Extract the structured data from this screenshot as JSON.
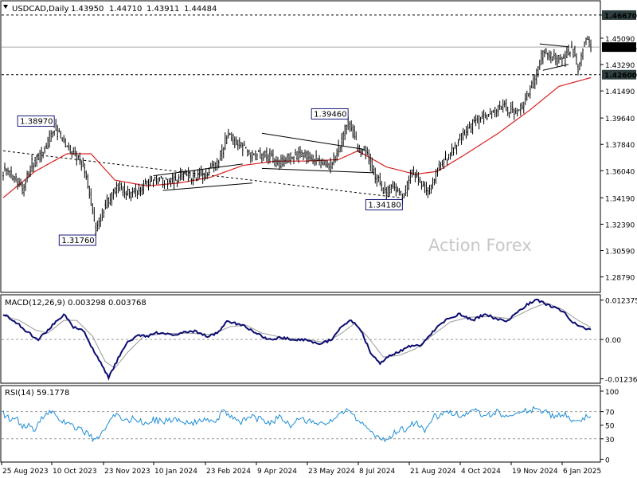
{
  "chart_data": [
    {
      "type": "candlestick",
      "panel": "price",
      "symbol": "USDCAD,Daily",
      "ohlc": [
        "1.43950",
        "1.44710",
        "1.43911",
        "1.44484"
      ],
      "ylim": [
        1.2779,
        1.4759
      ],
      "y_ticks": [
        "1.46670",
        "1.45090",
        "1.43290",
        "1.41490",
        "1.39640",
        "1.37840",
        "1.36040",
        "1.34190",
        "1.32390",
        "1.30590",
        "1.28790"
      ],
      "current_price": "1.44484",
      "levels": [
        {
          "value": 1.4667,
          "label": "1.46670",
          "style": "dashed"
        },
        {
          "value": 1.426,
          "label": "1.42600",
          "style": "dashed"
        }
      ],
      "annotations": [
        {
          "label": "1.38970",
          "value": 1.3897,
          "date_index": 32
        },
        {
          "label": "1.31760",
          "value": 1.3176,
          "date_index": 58
        },
        {
          "label": "1.39460",
          "value": 1.3946,
          "date_index": 216
        },
        {
          "label": "1.34180",
          "value": 1.3418,
          "date_index": 250
        }
      ],
      "x_ticks": [
        "25 Aug 2023",
        "10 Oct 2023",
        "23 Nov 2023",
        "10 Jan 2024",
        "23 Feb 2024",
        "9 Apr 2024",
        "23 May 2024",
        "8 Jul 2024",
        "21 Aug 2024",
        "4 Oct 2024",
        "19 Nov 2024",
        "6 Jan 2025"
      ],
      "close_keypoints": [
        [
          0,
          1.36
        ],
        [
          6,
          1.357
        ],
        [
          12,
          1.348
        ],
        [
          18,
          1.365
        ],
        [
          24,
          1.37
        ],
        [
          32,
          1.3897
        ],
        [
          38,
          1.38
        ],
        [
          44,
          1.372
        ],
        [
          50,
          1.365
        ],
        [
          54,
          1.345
        ],
        [
          58,
          1.3176
        ],
        [
          63,
          1.335
        ],
        [
          68,
          1.345
        ],
        [
          72,
          1.35
        ],
        [
          80,
          1.344
        ],
        [
          88,
          1.35
        ],
        [
          96,
          1.355
        ],
        [
          104,
          1.352
        ],
        [
          112,
          1.358
        ],
        [
          120,
          1.356
        ],
        [
          128,
          1.36
        ],
        [
          134,
          1.365
        ],
        [
          140,
          1.385
        ],
        [
          148,
          1.378
        ],
        [
          156,
          1.37
        ],
        [
          164,
          1.372
        ],
        [
          172,
          1.365
        ],
        [
          180,
          1.37
        ],
        [
          188,
          1.372
        ],
        [
          196,
          1.368
        ],
        [
          204,
          1.363
        ],
        [
          210,
          1.375
        ],
        [
          216,
          1.3946
        ],
        [
          222,
          1.376
        ],
        [
          228,
          1.37
        ],
        [
          234,
          1.355
        ],
        [
          240,
          1.345
        ],
        [
          245,
          1.35
        ],
        [
          250,
          1.3418
        ],
        [
          256,
          1.36
        ],
        [
          262,
          1.352
        ],
        [
          266,
          1.345
        ],
        [
          272,
          1.362
        ],
        [
          280,
          1.372
        ],
        [
          288,
          1.385
        ],
        [
          296,
          1.395
        ],
        [
          304,
          1.397
        ],
        [
          312,
          1.405
        ],
        [
          320,
          1.4
        ],
        [
          328,
          1.41
        ],
        [
          334,
          1.426
        ],
        [
          338,
          1.442
        ],
        [
          344,
          1.438
        ],
        [
          350,
          1.435
        ],
        [
          356,
          1.445
        ],
        [
          360,
          1.43
        ],
        [
          364,
          1.45
        ],
        [
          368,
          1.4448
        ]
      ],
      "ma_keypoints": [
        [
          0,
          1.342
        ],
        [
          20,
          1.36
        ],
        [
          40,
          1.372
        ],
        [
          55,
          1.372
        ],
        [
          70,
          1.354
        ],
        [
          90,
          1.35
        ],
        [
          110,
          1.352
        ],
        [
          130,
          1.356
        ],
        [
          150,
          1.364
        ],
        [
          170,
          1.367
        ],
        [
          190,
          1.367
        ],
        [
          210,
          1.368
        ],
        [
          222,
          1.374
        ],
        [
          240,
          1.363
        ],
        [
          258,
          1.358
        ],
        [
          272,
          1.36
        ],
        [
          290,
          1.372
        ],
        [
          310,
          1.386
        ],
        [
          330,
          1.402
        ],
        [
          348,
          1.418
        ],
        [
          368,
          1.424
        ]
      ],
      "pattern_lines": [
        {
          "from": [
            0,
            1.374
          ],
          "to": [
            250,
            1.3418
          ]
        },
        {
          "from": [
            94,
            1.357
          ],
          "to": [
            150,
            1.365
          ]
        },
        {
          "from": [
            100,
            1.347
          ],
          "to": [
            156,
            1.352
          ]
        },
        {
          "from": [
            162,
            1.386
          ],
          "to": [
            226,
            1.375
          ]
        },
        {
          "from": [
            162,
            1.362
          ],
          "to": [
            232,
            1.359
          ]
        },
        {
          "from": [
            336,
            1.447
          ],
          "to": [
            354,
            1.445
          ]
        },
        {
          "from": [
            338,
            1.429
          ],
          "to": [
            354,
            1.433
          ]
        }
      ],
      "watermark": "Action Forex"
    },
    {
      "type": "line",
      "panel": "macd",
      "title": "MACD(12,26,9) 0.003298 0.003768",
      "ylim": [
        -0.0135,
        0.0138
      ],
      "y_ticks": [
        "0.012375",
        "0.00",
        "-0.012367"
      ],
      "macd_keypoints": [
        [
          0,
          0.008
        ],
        [
          8,
          0.0055
        ],
        [
          16,
          0.002
        ],
        [
          22,
          0.0
        ],
        [
          30,
          0.004
        ],
        [
          38,
          0.008
        ],
        [
          44,
          0.004
        ],
        [
          50,
          0.003
        ],
        [
          56,
          -0.003
        ],
        [
          62,
          -0.008
        ],
        [
          66,
          -0.012
        ],
        [
          72,
          -0.006
        ],
        [
          78,
          -0.001
        ],
        [
          84,
          0.0015
        ],
        [
          90,
          0.001
        ],
        [
          96,
          0.002
        ],
        [
          104,
          0.0015
        ],
        [
          112,
          0.002
        ],
        [
          120,
          0.0025
        ],
        [
          128,
          0.001
        ],
        [
          134,
          0.002
        ],
        [
          140,
          0.0055
        ],
        [
          146,
          0.005
        ],
        [
          152,
          0.004
        ],
        [
          158,
          0.002
        ],
        [
          166,
          0.0
        ],
        [
          174,
          0.0005
        ],
        [
          182,
          0.0
        ],
        [
          190,
          0.0
        ],
        [
          198,
          -0.0015
        ],
        [
          206,
          0.0
        ],
        [
          212,
          0.004
        ],
        [
          218,
          0.006
        ],
        [
          224,
          0.003
        ],
        [
          230,
          -0.004
        ],
        [
          236,
          -0.0075
        ],
        [
          242,
          -0.005
        ],
        [
          248,
          -0.004
        ],
        [
          254,
          -0.002
        ],
        [
          262,
          -0.002
        ],
        [
          270,
          0.003
        ],
        [
          278,
          0.0065
        ],
        [
          286,
          0.008
        ],
        [
          294,
          0.006
        ],
        [
          302,
          0.008
        ],
        [
          308,
          0.0065
        ],
        [
          316,
          0.006
        ],
        [
          322,
          0.0085
        ],
        [
          328,
          0.011
        ],
        [
          334,
          0.0125
        ],
        [
          340,
          0.011
        ],
        [
          346,
          0.01
        ],
        [
          352,
          0.008
        ],
        [
          358,
          0.005
        ],
        [
          364,
          0.0035
        ],
        [
          368,
          0.0033
        ]
      ],
      "signal_keypoints": [
        [
          0,
          0.0075
        ],
        [
          10,
          0.006
        ],
        [
          20,
          0.003
        ],
        [
          28,
          0.002
        ],
        [
          38,
          0.006
        ],
        [
          46,
          0.006
        ],
        [
          56,
          0.001
        ],
        [
          64,
          -0.007
        ],
        [
          70,
          -0.009
        ],
        [
          78,
          -0.004
        ],
        [
          88,
          0.001
        ],
        [
          100,
          0.0018
        ],
        [
          116,
          0.002
        ],
        [
          130,
          0.0015
        ],
        [
          142,
          0.004
        ],
        [
          152,
          0.0045
        ],
        [
          162,
          0.002
        ],
        [
          176,
          0.0005
        ],
        [
          190,
          0.0
        ],
        [
          202,
          -0.001
        ],
        [
          212,
          0.002
        ],
        [
          220,
          0.005
        ],
        [
          228,
          0.001
        ],
        [
          238,
          -0.0055
        ],
        [
          248,
          -0.005
        ],
        [
          258,
          -0.003
        ],
        [
          268,
          0.001
        ],
        [
          280,
          0.0055
        ],
        [
          292,
          0.007
        ],
        [
          306,
          0.0072
        ],
        [
          318,
          0.0065
        ],
        [
          330,
          0.0095
        ],
        [
          340,
          0.0115
        ],
        [
          350,
          0.0095
        ],
        [
          360,
          0.006
        ],
        [
          368,
          0.0038
        ]
      ]
    },
    {
      "type": "line",
      "panel": "rsi",
      "title": "RSI(14) 59.1778",
      "ylim": [
        -3,
        107
      ],
      "y_ticks": [
        "100",
        "70",
        "50",
        "30",
        "0"
      ],
      "levels": [
        70,
        30
      ],
      "rsi_keypoints": [
        [
          0,
          68
        ],
        [
          4,
          58
        ],
        [
          8,
          62
        ],
        [
          12,
          45
        ],
        [
          16,
          52
        ],
        [
          20,
          40
        ],
        [
          24,
          60
        ],
        [
          30,
          72
        ],
        [
          36,
          55
        ],
        [
          42,
          50
        ],
        [
          48,
          45
        ],
        [
          54,
          35
        ],
        [
          58,
          25
        ],
        [
          62,
          38
        ],
        [
          66,
          55
        ],
        [
          70,
          65
        ],
        [
          76,
          55
        ],
        [
          82,
          60
        ],
        [
          88,
          52
        ],
        [
          94,
          58
        ],
        [
          100,
          55
        ],
        [
          108,
          60
        ],
        [
          116,
          52
        ],
        [
          124,
          58
        ],
        [
          132,
          55
        ],
        [
          138,
          70
        ],
        [
          144,
          60
        ],
        [
          150,
          55
        ],
        [
          156,
          62
        ],
        [
          162,
          58
        ],
        [
          168,
          55
        ],
        [
          174,
          62
        ],
        [
          180,
          50
        ],
        [
          186,
          60
        ],
        [
          192,
          55
        ],
        [
          198,
          50
        ],
        [
          204,
          58
        ],
        [
          210,
          65
        ],
        [
          216,
          72
        ],
        [
          222,
          55
        ],
        [
          228,
          45
        ],
        [
          234,
          35
        ],
        [
          240,
          28
        ],
        [
          246,
          40
        ],
        [
          252,
          45
        ],
        [
          258,
          55
        ],
        [
          264,
          40
        ],
        [
          270,
          62
        ],
        [
          278,
          70
        ],
        [
          286,
          65
        ],
        [
          294,
          72
        ],
        [
          302,
          65
        ],
        [
          310,
          70
        ],
        [
          316,
          60
        ],
        [
          322,
          72
        ],
        [
          328,
          70
        ],
        [
          334,
          75
        ],
        [
          340,
          68
        ],
        [
          346,
          62
        ],
        [
          352,
          65
        ],
        [
          358,
          55
        ],
        [
          364,
          62
        ],
        [
          368,
          59
        ]
      ]
    }
  ]
}
